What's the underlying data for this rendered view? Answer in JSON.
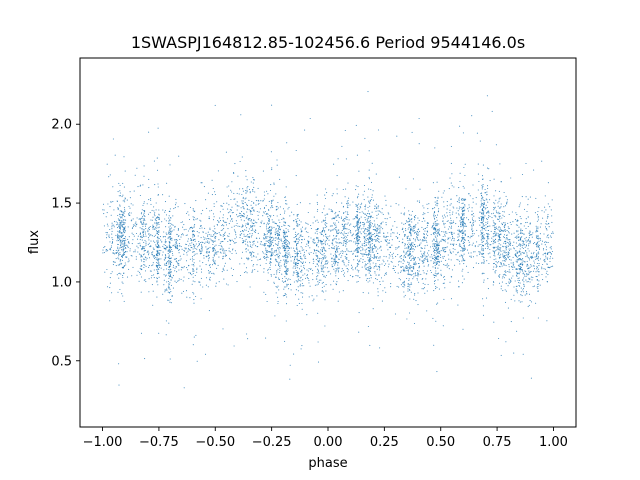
{
  "chart_data": {
    "type": "scatter",
    "title": "1SWASPJ164812.85-102456.6 Period 9544146.0s",
    "xlabel": "phase",
    "ylabel": "flux",
    "xlim": [
      -1.1,
      1.1
    ],
    "ylim": [
      0.08,
      2.42
    ],
    "xticks": [
      -1.0,
      -0.75,
      -0.5,
      -0.25,
      0.0,
      0.25,
      0.5,
      0.75,
      1.0
    ],
    "xtick_labels": [
      "−1.00",
      "−0.75",
      "−0.50",
      "−0.25",
      "0.00",
      "0.25",
      "0.50",
      "0.75",
      "1.00"
    ],
    "yticks": [
      0.5,
      1.0,
      1.5,
      2.0
    ],
    "ytick_labels": [
      "0.5",
      "1.0",
      "1.5",
      "2.0"
    ],
    "grid": false,
    "legend": "none",
    "series": [
      {
        "marker_color": "#1f77b4",
        "x_range": [
          -1.0,
          1.0
        ],
        "point_count_estimate": 9000,
        "mean_flux_profile": {
          "phase": [
            -1.0,
            -0.9,
            -0.8,
            -0.7,
            -0.6,
            -0.5,
            -0.4,
            -0.3,
            -0.2,
            -0.1,
            0.0,
            0.1,
            0.2,
            0.3,
            0.4,
            0.5,
            0.6,
            0.7,
            0.8,
            0.9,
            1.0
          ],
          "flux": [
            1.28,
            1.3,
            1.28,
            1.18,
            1.2,
            1.25,
            1.35,
            1.35,
            1.2,
            1.15,
            1.22,
            1.3,
            1.28,
            1.18,
            1.2,
            1.25,
            1.35,
            1.35,
            1.2,
            1.15,
            1.22
          ]
        },
        "typical_spread": 0.14,
        "flux_min_observed": 0.2,
        "flux_max_observed": 2.32
      }
    ]
  }
}
